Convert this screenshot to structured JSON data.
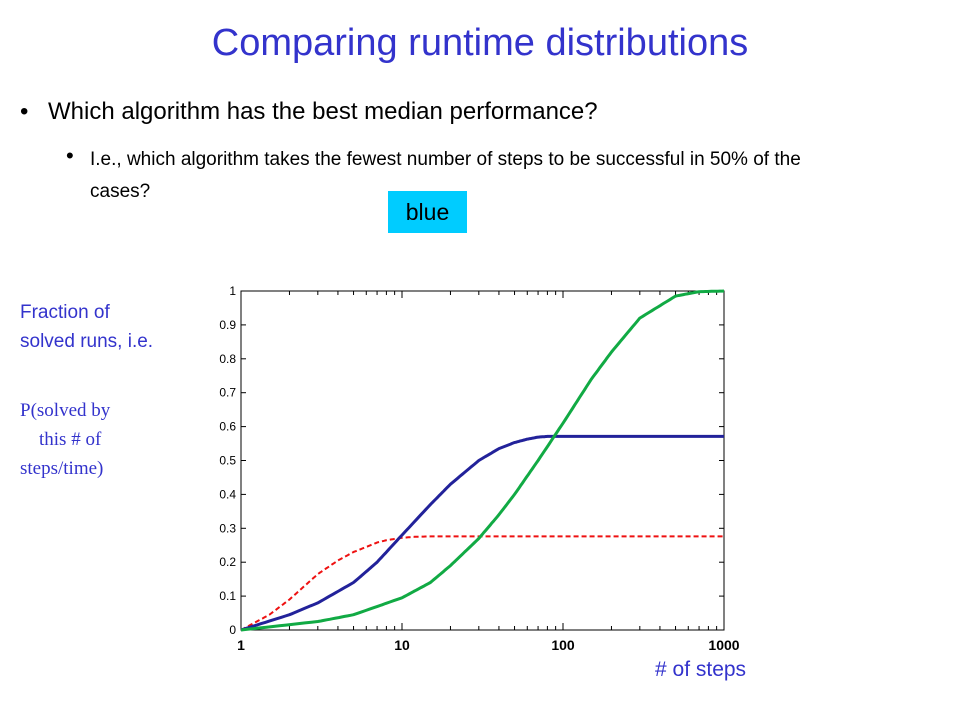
{
  "slide": {
    "title": "Comparing runtime distributions",
    "bullet1": "Which algorithm has the best median performance?",
    "bullet2": "I.e., which algorithm takes the fewest number of steps to be successful in 50% of the cases?",
    "answer": "blue",
    "ylabel_line1": "Fraction of",
    "ylabel_line2": "solved runs, i.e.",
    "ylabel_formula": "P(solved by\n    this # of\nsteps/time)",
    "xlabel": "# of steps",
    "bullet_glyph": "•"
  },
  "chart_data": {
    "type": "line",
    "xscale": "log",
    "xlim": [
      1,
      1000
    ],
    "ylim": [
      0,
      1
    ],
    "x_ticks": [
      "1",
      "10",
      "100",
      "1000"
    ],
    "y_ticks": [
      "0",
      "0.1",
      "0.2",
      "0.3",
      "0.4",
      "0.5",
      "0.6",
      "0.7",
      "0.8",
      "0.9",
      "1"
    ],
    "grid": false,
    "series": [
      {
        "color": "#ee1111",
        "dashed": true,
        "x": [
          1,
          1.5,
          2,
          3,
          4,
          5,
          6,
          7,
          8,
          10,
          12,
          15,
          20,
          50,
          100,
          1000
        ],
        "y": [
          0.0,
          0.045,
          0.09,
          0.165,
          0.205,
          0.23,
          0.245,
          0.258,
          0.265,
          0.272,
          0.275,
          0.276,
          0.276,
          0.276,
          0.276,
          0.276
        ]
      },
      {
        "color": "#22229a",
        "dashed": false,
        "x": [
          1,
          2,
          3,
          5,
          7,
          10,
          15,
          20,
          30,
          40,
          50,
          60,
          70,
          80,
          100,
          1000
        ],
        "y": [
          0.0,
          0.045,
          0.08,
          0.14,
          0.2,
          0.28,
          0.37,
          0.43,
          0.5,
          0.535,
          0.553,
          0.563,
          0.569,
          0.571,
          0.571,
          0.571
        ]
      },
      {
        "color": "#11aa44",
        "dashed": false,
        "x": [
          1,
          3,
          5,
          10,
          15,
          20,
          30,
          40,
          50,
          70,
          100,
          150,
          200,
          300,
          500,
          700,
          1000
        ],
        "y": [
          0.0,
          0.025,
          0.045,
          0.095,
          0.14,
          0.19,
          0.27,
          0.34,
          0.4,
          0.5,
          0.61,
          0.74,
          0.82,
          0.92,
          0.985,
          0.998,
          1.0
        ]
      }
    ]
  }
}
